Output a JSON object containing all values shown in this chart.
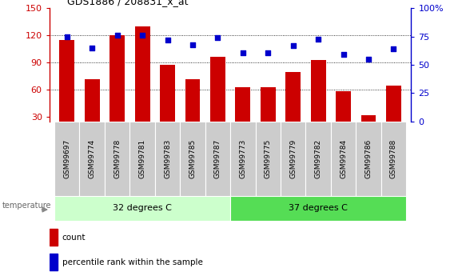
{
  "title": "GDS1886 / 208831_x_at",
  "categories": [
    "GSM99697",
    "GSM99774",
    "GSM99778",
    "GSM99781",
    "GSM99783",
    "GSM99785",
    "GSM99787",
    "GSM99773",
    "GSM99775",
    "GSM99779",
    "GSM99782",
    "GSM99784",
    "GSM99786",
    "GSM99788"
  ],
  "bar_values": [
    115,
    72,
    120,
    130,
    88,
    72,
    96,
    63,
    63,
    80,
    93,
    58,
    32,
    65
  ],
  "dot_values": [
    75,
    65,
    76,
    76,
    72,
    68,
    74,
    61,
    61,
    67,
    73,
    59,
    55,
    64
  ],
  "group1_label": "32 degrees C",
  "group2_label": "37 degrees C",
  "group1_count": 7,
  "group2_count": 7,
  "bar_color": "#cc0000",
  "dot_color": "#0000cc",
  "group1_bg": "#ccffcc",
  "group2_bg": "#55dd55",
  "xtick_bg": "#cccccc",
  "ylim_left": [
    25,
    150
  ],
  "ylim_right": [
    0,
    100
  ],
  "yticks_left": [
    30,
    60,
    90,
    120,
    150
  ],
  "yticks_right": [
    0,
    25,
    50,
    75,
    100
  ],
  "grid_values": [
    60,
    90,
    120
  ],
  "temperature_label": "temperature",
  "legend_count": "count",
  "legend_pct": "percentile rank within the sample"
}
